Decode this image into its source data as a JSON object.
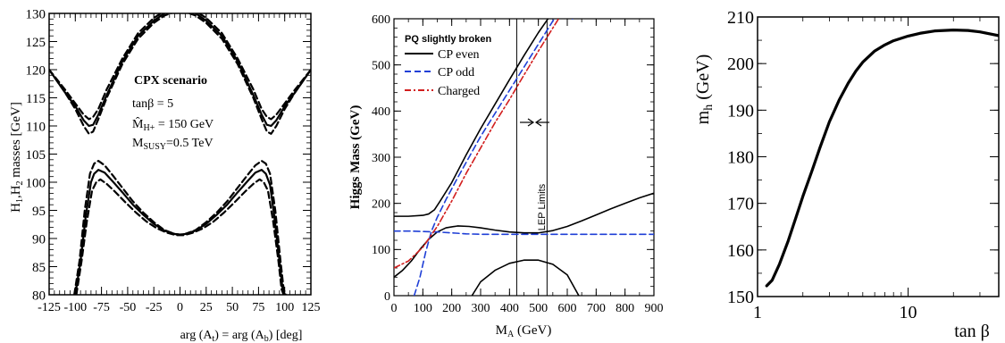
{
  "chart_data": [
    {
      "type": "line",
      "xlabel": "arg (A_t) = arg (A_b) [deg]",
      "ylabel": "H_1,H_2 masses [GeV]",
      "xlim": [
        -125,
        125
      ],
      "ylim": [
        80,
        130
      ],
      "xticks": [
        "-125",
        "-100",
        "-75",
        "-50",
        "-25",
        "0",
        "25",
        "50",
        "75",
        "100",
        "125"
      ],
      "yticks": [
        "80",
        "85",
        "90",
        "95",
        "100",
        "105",
        "110",
        "115",
        "120",
        "125",
        "130"
      ],
      "annotation": {
        "title": "CPX scenario",
        "tanb": "tanβ = 5",
        "mh_hat": "M̂H+ = 150 GeV",
        "msusy": "MSUSY = 0.5 TeV"
      },
      "series": [
        {
          "style": "solid",
          "x": [
            -125,
            -110,
            -100,
            -92,
            -87,
            -83,
            -78,
            -70,
            -55,
            -40,
            -25,
            -15,
            -5,
            0,
            5,
            15,
            25,
            40,
            55,
            70,
            78,
            83,
            87,
            92,
            100,
            110,
            125
          ],
          "values": [
            120,
            116,
            113.5,
            111,
            110,
            110.2,
            112,
            115.5,
            121.5,
            126,
            128.7,
            130,
            130.7,
            131,
            130.7,
            130,
            128.7,
            126,
            121.5,
            115.5,
            112,
            110.2,
            110,
            111,
            113.5,
            116,
            120
          ]
        },
        {
          "style": "dashed",
          "x": [
            -125,
            -110,
            -100,
            -92,
            -87,
            -83,
            -78,
            -70,
            -55,
            -40,
            -25,
            -15,
            -5,
            0,
            5,
            15,
            25,
            40,
            55,
            70,
            78,
            83,
            87,
            92,
            100,
            110,
            125
          ],
          "values": [
            120,
            116,
            113,
            110,
            108.6,
            109,
            111.2,
            115,
            121,
            125.5,
            128.3,
            129.6,
            130.3,
            130.6,
            130.3,
            129.6,
            128.3,
            125.5,
            121,
            115,
            111.2,
            109,
            108.6,
            110,
            113,
            116,
            120
          ]
        },
        {
          "style": "dashed",
          "x": [
            -125,
            -110,
            -100,
            -92,
            -87,
            -83,
            -78,
            -70,
            -55,
            -40,
            -25,
            -15,
            -5,
            0,
            5,
            15,
            25,
            40,
            55,
            70,
            78,
            83,
            87,
            92,
            100,
            110,
            125
          ],
          "values": [
            120,
            116.5,
            114,
            112,
            111.2,
            111.6,
            113,
            116.5,
            122,
            126.5,
            129.2,
            130.4,
            131.1,
            131.4,
            131.1,
            130.4,
            129.2,
            126.5,
            122,
            116.5,
            113,
            111.6,
            111.2,
            112,
            114,
            116.5,
            120
          ]
        },
        {
          "style": "solid",
          "x": [
            -100,
            -95,
            -90,
            -85,
            -82,
            -78,
            -72,
            -65,
            -55,
            -45,
            -35,
            -25,
            -15,
            -5,
            0,
            5,
            15,
            25,
            35,
            45,
            55,
            65,
            72,
            78,
            82,
            86,
            90,
            95,
            98,
            100
          ],
          "values": [
            80,
            86,
            94,
            100,
            101.5,
            102.2,
            101.7,
            100.3,
            98.2,
            96,
            94.2,
            92.6,
            91.4,
            90.8,
            90.7,
            90.8,
            91.4,
            92.6,
            94.2,
            96,
            98.2,
            100.3,
            101.7,
            102.2,
            101.5,
            99.5,
            94,
            86,
            81,
            80
          ]
        },
        {
          "style": "dashed",
          "x": [
            -101,
            -96,
            -91,
            -86,
            -82,
            -78,
            -72,
            -65,
            -55,
            -45,
            -35,
            -25,
            -15,
            -5,
            0,
            5,
            15,
            25,
            35,
            45,
            55,
            65,
            72,
            78,
            82,
            86,
            91,
            96,
            99,
            101
          ],
          "values": [
            80,
            86,
            95,
            101.5,
            103.3,
            103.8,
            103,
            101.4,
            99,
            96.6,
            94.6,
            92.9,
            91.5,
            90.8,
            90.7,
            90.8,
            91.5,
            92.9,
            94.6,
            96.6,
            99,
            101.4,
            103,
            103.8,
            103.3,
            101.5,
            95,
            86,
            81,
            80
          ]
        },
        {
          "style": "dashed",
          "x": [
            -99,
            -94,
            -89,
            -84,
            -80,
            -76,
            -70,
            -62,
            -52,
            -42,
            -32,
            -22,
            -12,
            -4,
            0,
            4,
            12,
            22,
            32,
            42,
            52,
            62,
            70,
            76,
            80,
            84,
            89,
            94,
            97,
            99
          ],
          "values": [
            80,
            86,
            93,
            98.5,
            100,
            100.5,
            99.7,
            98.3,
            96.4,
            94.6,
            93,
            91.8,
            91,
            90.6,
            90.6,
            90.6,
            91,
            91.8,
            93,
            94.6,
            96.4,
            98.3,
            99.7,
            100.5,
            100,
            98.5,
            93,
            86,
            81,
            80
          ]
        }
      ]
    },
    {
      "type": "line",
      "xlabel": "M_A (GeV)",
      "ylabel": "Higgs Mass (GeV)",
      "xlim": [
        0,
        900
      ],
      "ylim": [
        0,
        600
      ],
      "xticks": [
        "0",
        "100",
        "200",
        "300",
        "400",
        "500",
        "600",
        "700",
        "800",
        "900"
      ],
      "yticks": [
        "0",
        "100",
        "200",
        "300",
        "400",
        "500",
        "600"
      ],
      "legend": {
        "title": "PQ slightly broken",
        "items": [
          {
            "label": "CP even",
            "color": "#000000",
            "style": "solid"
          },
          {
            "label": "CP odd",
            "color": "#1f3fd6",
            "style": "dashed"
          },
          {
            "label": "Charged",
            "color": "#d21e1e",
            "style": "dashdot"
          }
        ]
      },
      "vlines": [
        425,
        530
      ],
      "vline_label": "LEP Limits",
      "series": [
        {
          "name": "CP even",
          "color": "#000000",
          "style": "solid",
          "x": [
            0,
            50,
            100,
            120,
            140,
            160,
            180,
            200,
            250,
            300,
            350,
            400,
            450,
            500,
            550,
            600,
            618
          ],
          "values": [
            172,
            172,
            174,
            177,
            186,
            205,
            225,
            245,
            305,
            362,
            415,
            468,
            520,
            570,
            615,
            650,
            600
          ]
        },
        {
          "name": "CP even",
          "color": "#000000",
          "style": "solid",
          "x": [
            0,
            30,
            60,
            90,
            120,
            150,
            180,
            220,
            260,
            300,
            350,
            400,
            450,
            500,
            550,
            600,
            650,
            700,
            750,
            800,
            850,
            900
          ],
          "values": [
            40,
            55,
            75,
            100,
            122,
            138,
            147,
            151,
            150,
            147,
            142,
            138,
            136,
            136,
            141,
            150,
            162,
            175,
            188,
            200,
            212,
            222
          ]
        },
        {
          "name": "CP even",
          "color": "#000000",
          "style": "solid",
          "x": [
            270,
            300,
            350,
            400,
            450,
            500,
            550,
            600,
            640
          ],
          "values": [
            0,
            30,
            55,
            70,
            77,
            77,
            68,
            45,
            0
          ]
        },
        {
          "name": "CP odd",
          "color": "#1f3fd6",
          "style": "dashed",
          "x": [
            0,
            50,
            100,
            150,
            200,
            250,
            300,
            350,
            400,
            450,
            500,
            550,
            600,
            650,
            700,
            750,
            800,
            850,
            900
          ],
          "values": [
            140,
            140,
            139,
            138,
            136,
            134,
            133,
            133,
            133,
            133,
            133,
            133,
            133,
            133,
            133,
            133,
            133,
            133,
            133
          ]
        },
        {
          "name": "CP odd",
          "color": "#1f3fd6",
          "style": "dashed",
          "x": [
            70,
            90,
            110,
            130,
            150,
            180,
            220,
            260,
            300,
            350,
            400,
            450,
            500,
            550,
            600,
            618
          ],
          "values": [
            0,
            40,
            95,
            140,
            170,
            208,
            255,
            300,
            345,
            395,
            445,
            495,
            545,
            595,
            645,
            600
          ]
        },
        {
          "name": "Charged",
          "color": "#d21e1e",
          "style": "dashdot",
          "x": [
            0,
            50,
            100,
            150,
            200,
            250,
            300,
            350,
            400,
            450,
            500,
            550,
            600,
            618
          ],
          "values": [
            60,
            75,
            105,
            150,
            205,
            265,
            320,
            375,
            425,
            478,
            530,
            580,
            630,
            600
          ]
        }
      ]
    },
    {
      "type": "line",
      "xlabel": "tan β",
      "ylabel": "m_h (GeV)",
      "xscale": "log",
      "xlim": [
        1,
        40
      ],
      "ylim": [
        150,
        210
      ],
      "xticks": [
        "1",
        "10"
      ],
      "yticks": [
        "150",
        "160",
        "170",
        "180",
        "190",
        "200",
        "210"
      ],
      "series": [
        {
          "style": "solid",
          "x": [
            1.15,
            1.25,
            1.4,
            1.6,
            1.8,
            2.0,
            2.3,
            2.6,
            3.0,
            3.5,
            4.0,
            4.5,
            5,
            6,
            7,
            8,
            10,
            12,
            15,
            20,
            25,
            30,
            40
          ],
          "values": [
            152.3,
            153.5,
            157,
            162,
            167,
            171.5,
            177,
            182,
            187.5,
            192.3,
            195.8,
            198.4,
            200.3,
            202.7,
            204,
            204.9,
            205.9,
            206.5,
            207,
            207.2,
            207.1,
            206.8,
            206
          ]
        }
      ]
    }
  ]
}
